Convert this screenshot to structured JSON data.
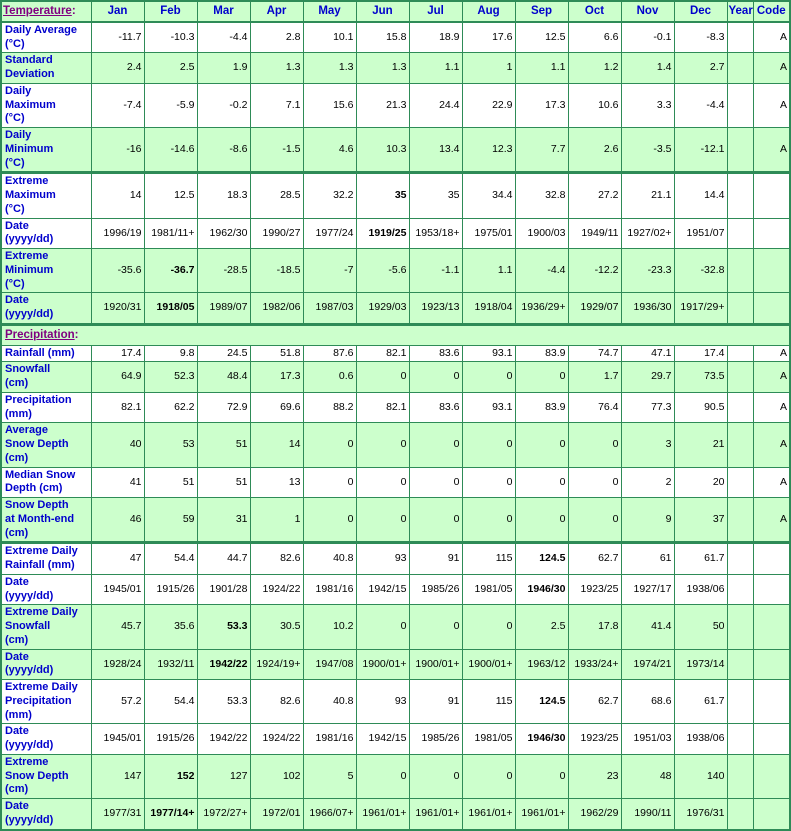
{
  "colors": {
    "border": "#2E8B57",
    "green_bg": "#CCFFCC",
    "white_bg": "#FFFFFF",
    "header_text": "#0000CC",
    "link_text": "#800080"
  },
  "header": {
    "temperature_link": "Temperature",
    "colon": ":",
    "months": [
      "Jan",
      "Feb",
      "Mar",
      "Apr",
      "May",
      "Jun",
      "Jul",
      "Aug",
      "Sep",
      "Oct",
      "Nov",
      "Dec"
    ],
    "year_label": "Year",
    "code_label": "Code"
  },
  "rows": [
    {
      "label": "Daily Average (°C)",
      "label_lines": [
        "Daily Average",
        "(°C)"
      ],
      "values": [
        "-11.7",
        "-10.3",
        "-4.4",
        "2.8",
        "10.1",
        "15.8",
        "18.9",
        "17.6",
        "12.5",
        "6.6",
        "-0.1",
        "-8.3"
      ],
      "year": "",
      "code": "A",
      "bg": "white",
      "bold": -1,
      "thick": false
    },
    {
      "label": "Standard Deviation",
      "label_lines": [
        "Standard",
        "Deviation"
      ],
      "values": [
        "2.4",
        "2.5",
        "1.9",
        "1.3",
        "1.3",
        "1.3",
        "1.1",
        "1",
        "1.1",
        "1.2",
        "1.4",
        "2.7"
      ],
      "year": "",
      "code": "A",
      "bg": "green",
      "bold": -1,
      "thick": false
    },
    {
      "label": "Daily Maximum (°C)",
      "label_lines": [
        "Daily",
        "Maximum",
        "(°C)"
      ],
      "values": [
        "-7.4",
        "-5.9",
        "-0.2",
        "7.1",
        "15.6",
        "21.3",
        "24.4",
        "22.9",
        "17.3",
        "10.6",
        "3.3",
        "-4.4"
      ],
      "year": "",
      "code": "A",
      "bg": "white",
      "bold": -1,
      "thick": false
    },
    {
      "label": "Daily Minimum (°C)",
      "label_lines": [
        "Daily",
        "Minimum",
        "(°C)"
      ],
      "values": [
        "-16",
        "-14.6",
        "-8.6",
        "-1.5",
        "4.6",
        "10.3",
        "13.4",
        "12.3",
        "7.7",
        "2.6",
        "-3.5",
        "-12.1"
      ],
      "year": "",
      "code": "A",
      "bg": "green",
      "bold": -1,
      "thick": false
    },
    {
      "label": "Extreme Maximum (°C)",
      "label_lines": [
        "Extreme",
        "Maximum",
        "(°C)"
      ],
      "values": [
        "14",
        "12.5",
        "18.3",
        "28.5",
        "32.2",
        "35",
        "35",
        "34.4",
        "32.8",
        "27.2",
        "21.1",
        "14.4"
      ],
      "year": "",
      "code": "",
      "bg": "white",
      "bold": 5,
      "thick": true
    },
    {
      "label": "Date (yyyy/dd)",
      "label_lines": [
        "Date",
        "(yyyy/dd)"
      ],
      "values": [
        "1996/19",
        "1981/11+",
        "1962/30",
        "1990/27",
        "1977/24",
        "1919/25",
        "1953/18+",
        "1975/01",
        "1900/03",
        "1949/11",
        "1927/02+",
        "1951/07"
      ],
      "year": "",
      "code": "",
      "bg": "white",
      "bold": 5,
      "thick": false
    },
    {
      "label": "Extreme Minimum (°C)",
      "label_lines": [
        "Extreme",
        "Minimum",
        "(°C)"
      ],
      "values": [
        "-35.6",
        "-36.7",
        "-28.5",
        "-18.5",
        "-7",
        "-5.6",
        "-1.1",
        "1.1",
        "-4.4",
        "-12.2",
        "-23.3",
        "-32.8"
      ],
      "year": "",
      "code": "",
      "bg": "green",
      "bold": 1,
      "thick": false
    },
    {
      "label": "Date (yyyy/dd)",
      "label_lines": [
        "Date",
        "(yyyy/dd)"
      ],
      "values": [
        "1920/31",
        "1918/05",
        "1989/07",
        "1982/06",
        "1987/03",
        "1929/03",
        "1923/13",
        "1918/04",
        "1936/29+",
        "1929/07",
        "1936/30",
        "1917/29+"
      ],
      "year": "",
      "code": "",
      "bg": "green",
      "bold": 1,
      "thick": false
    },
    {
      "type": "section",
      "link": "Precipitation",
      "bg": "green",
      "thick": true
    },
    {
      "label": "Rainfall (mm)",
      "label_lines": [
        "Rainfall (mm)"
      ],
      "values": [
        "17.4",
        "9.8",
        "24.5",
        "51.8",
        "87.6",
        "82.1",
        "83.6",
        "93.1",
        "83.9",
        "74.7",
        "47.1",
        "17.4"
      ],
      "year": "",
      "code": "A",
      "bg": "white",
      "bold": -1,
      "thick": false
    },
    {
      "label": "Snowfall (cm)",
      "label_lines": [
        "Snowfall",
        "(cm)"
      ],
      "values": [
        "64.9",
        "52.3",
        "48.4",
        "17.3",
        "0.6",
        "0",
        "0",
        "0",
        "0",
        "1.7",
        "29.7",
        "73.5"
      ],
      "year": "",
      "code": "A",
      "bg": "green",
      "bold": -1,
      "thick": false
    },
    {
      "label": "Precipitation (mm)",
      "label_lines": [
        "Precipitation",
        "(mm)"
      ],
      "values": [
        "82.1",
        "62.2",
        "72.9",
        "69.6",
        "88.2",
        "82.1",
        "83.6",
        "93.1",
        "83.9",
        "76.4",
        "77.3",
        "90.5"
      ],
      "year": "",
      "code": "A",
      "bg": "white",
      "bold": -1,
      "thick": false
    },
    {
      "label": "Average Snow Depth (cm)",
      "label_lines": [
        "Average",
        "Snow Depth",
        "(cm)"
      ],
      "values": [
        "40",
        "53",
        "51",
        "14",
        "0",
        "0",
        "0",
        "0",
        "0",
        "0",
        "3",
        "21"
      ],
      "year": "",
      "code": "A",
      "bg": "green",
      "bold": -1,
      "thick": false
    },
    {
      "label": "Median Snow Depth (cm)",
      "label_lines": [
        "Median Snow",
        "Depth (cm)"
      ],
      "values": [
        "41",
        "51",
        "51",
        "13",
        "0",
        "0",
        "0",
        "0",
        "0",
        "0",
        "2",
        "20"
      ],
      "year": "",
      "code": "A",
      "bg": "white",
      "bold": -1,
      "thick": false
    },
    {
      "label": "Snow Depth at Month-end (cm)",
      "label_lines": [
        "Snow Depth",
        "at Month-end",
        "(cm)"
      ],
      "values": [
        "46",
        "59",
        "31",
        "1",
        "0",
        "0",
        "0",
        "0",
        "0",
        "0",
        "9",
        "37"
      ],
      "year": "",
      "code": "A",
      "bg": "green",
      "bold": -1,
      "thick": false
    },
    {
      "label": "Extreme Daily Rainfall (mm)",
      "label_lines": [
        "Extreme Daily",
        "Rainfall (mm)"
      ],
      "values": [
        "47",
        "54.4",
        "44.7",
        "82.6",
        "40.8",
        "93",
        "91",
        "115",
        "124.5",
        "62.7",
        "61",
        "61.7"
      ],
      "year": "",
      "code": "",
      "bg": "white",
      "bold": 8,
      "thick": true
    },
    {
      "label": "Date (yyyy/dd)",
      "label_lines": [
        "Date",
        "(yyyy/dd)"
      ],
      "values": [
        "1945/01",
        "1915/26",
        "1901/28",
        "1924/22",
        "1981/16",
        "1942/15",
        "1985/26",
        "1981/05",
        "1946/30",
        "1923/25",
        "1927/17",
        "1938/06"
      ],
      "year": "",
      "code": "",
      "bg": "white",
      "bold": 8,
      "thick": false
    },
    {
      "label": "Extreme Daily Snowfall (cm)",
      "label_lines": [
        "Extreme Daily",
        "Snowfall",
        "(cm)"
      ],
      "values": [
        "45.7",
        "35.6",
        "53.3",
        "30.5",
        "10.2",
        "0",
        "0",
        "0",
        "2.5",
        "17.8",
        "41.4",
        "50"
      ],
      "year": "",
      "code": "",
      "bg": "green",
      "bold": 2,
      "thick": false
    },
    {
      "label": "Date (yyyy/dd)",
      "label_lines": [
        "Date",
        "(yyyy/dd)"
      ],
      "values": [
        "1928/24",
        "1932/11",
        "1942/22",
        "1924/19+",
        "1947/08",
        "1900/01+",
        "1900/01+",
        "1900/01+",
        "1963/12",
        "1933/24+",
        "1974/21",
        "1973/14"
      ],
      "year": "",
      "code": "",
      "bg": "green",
      "bold": 2,
      "thick": false
    },
    {
      "label": "Extreme Daily Precipitation (mm)",
      "label_lines": [
        "Extreme Daily",
        "Precipitation",
        "(mm)"
      ],
      "values": [
        "57.2",
        "54.4",
        "53.3",
        "82.6",
        "40.8",
        "93",
        "91",
        "115",
        "124.5",
        "62.7",
        "68.6",
        "61.7"
      ],
      "year": "",
      "code": "",
      "bg": "white",
      "bold": 8,
      "thick": false
    },
    {
      "label": "Date (yyyy/dd)",
      "label_lines": [
        "Date",
        "(yyyy/dd)"
      ],
      "values": [
        "1945/01",
        "1915/26",
        "1942/22",
        "1924/22",
        "1981/16",
        "1942/15",
        "1985/26",
        "1981/05",
        "1946/30",
        "1923/25",
        "1951/03",
        "1938/06"
      ],
      "year": "",
      "code": "",
      "bg": "white",
      "bold": 8,
      "thick": false
    },
    {
      "label": "Extreme Snow Depth (cm)",
      "label_lines": [
        "Extreme",
        "Snow Depth",
        "(cm)"
      ],
      "values": [
        "147",
        "152",
        "127",
        "102",
        "5",
        "0",
        "0",
        "0",
        "0",
        "23",
        "48",
        "140"
      ],
      "year": "",
      "code": "",
      "bg": "green",
      "bold": 1,
      "thick": false
    },
    {
      "label": "Date (yyyy/dd)",
      "label_lines": [
        "Date",
        "(yyyy/dd)"
      ],
      "values": [
        "1977/31",
        "1977/14+",
        "1972/27+",
        "1972/01",
        "1966/07+",
        "1961/01+",
        "1961/01+",
        "1961/01+",
        "1961/01+",
        "1962/29",
        "1990/11",
        "1976/31"
      ],
      "year": "",
      "code": "",
      "bg": "green",
      "bold": 1,
      "thick": false
    }
  ]
}
